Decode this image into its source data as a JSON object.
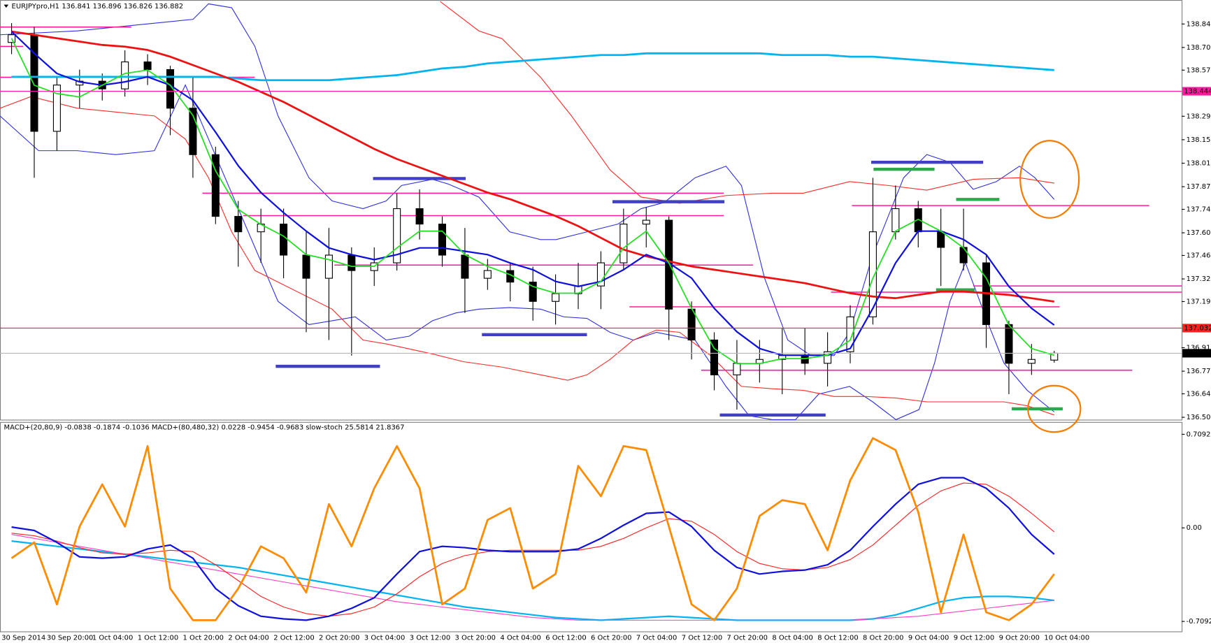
{
  "chart_data": [
    {
      "type": "candlestick",
      "title": "EURJPYpro,H1",
      "subtitle": "136.841 136.896 136.826 136.882",
      "categories": [
        "30 Sep 2014",
        null,
        "30 Sep 20:00",
        null,
        "1 Oct 04:00",
        null,
        "1 Oct 12:00",
        null,
        "1 Oct 20:00",
        null,
        "2 Oct 04:00",
        null,
        "2 Oct 12:00",
        null,
        "2 Oct 20:00",
        null,
        "3 Oct 04:00",
        null,
        "3 Oct 12:00",
        null,
        "3 Oct 20:00",
        null,
        "4 Oct 04:00",
        null,
        "6 Oct 12:00",
        null,
        "6 Oct 20:00",
        null,
        "7 Oct 04:00",
        null,
        "7 Oct 12:00",
        null,
        "7 Oct 20:00",
        null,
        "8 Oct 04:00",
        null,
        "8 Oct 12:00",
        null,
        "8 Oct 20:00",
        null,
        "9 Oct 04:00",
        null,
        "9 Oct 12:00",
        null,
        "9 Oct 20:00",
        null,
        "10 Oct 04:00"
      ],
      "open": [
        138.735,
        138.781,
        138.205,
        138.481,
        138.504,
        138.458,
        138.619,
        138.573,
        138.343,
        138.066,
        137.698,
        137.606,
        137.652,
        137.467,
        137.329,
        137.467,
        137.375,
        137.421,
        137.744,
        137.652,
        137.467,
        137.329,
        137.375,
        137.306,
        137.191,
        137.237,
        137.283,
        137.421,
        137.652,
        137.675,
        137.145,
        136.961,
        136.753,
        136.822,
        136.845,
        136.868,
        136.822,
        136.891,
        137.099,
        137.606,
        137.744,
        137.606,
        137.513,
        137.421,
        137.053,
        136.822,
        136.841
      ],
      "high": [
        138.85,
        138.827,
        138.527,
        138.573,
        138.55,
        138.688,
        138.665,
        138.596,
        138.527,
        138.113,
        137.79,
        137.744,
        137.744,
        137.606,
        137.629,
        137.513,
        137.513,
        137.836,
        137.859,
        137.698,
        137.629,
        137.444,
        137.421,
        137.398,
        137.352,
        137.421,
        137.49,
        137.744,
        137.753,
        137.698,
        137.191,
        137.007,
        136.961,
        136.961,
        137.03,
        137.03,
        137.007,
        137.168,
        137.928,
        137.882,
        137.79,
        137.744,
        137.744,
        137.467,
        137.076,
        136.937,
        136.896
      ],
      "low": [
        138.665,
        137.928,
        138.09,
        138.343,
        138.389,
        138.412,
        138.481,
        138.182,
        137.928,
        137.652,
        137.398,
        137.421,
        137.329,
        137.007,
        136.961,
        136.868,
        137.283,
        137.375,
        137.56,
        137.398,
        137.122,
        137.26,
        137.191,
        137.076,
        137.053,
        137.145,
        137.145,
        137.375,
        137.513,
        136.961,
        136.845,
        136.661,
        136.546,
        136.707,
        136.638,
        136.753,
        136.684,
        136.822,
        137.053,
        137.56,
        137.513,
        137.283,
        137.375,
        136.914,
        136.638,
        136.753,
        136.826
      ],
      "close": [
        138.781,
        138.205,
        138.481,
        138.504,
        138.458,
        138.619,
        138.573,
        138.343,
        138.066,
        137.698,
        137.606,
        137.652,
        137.467,
        137.329,
        137.467,
        137.375,
        137.421,
        137.744,
        137.652,
        137.467,
        137.329,
        137.375,
        137.306,
        137.191,
        137.237,
        137.283,
        137.421,
        137.652,
        137.675,
        137.145,
        136.961,
        136.753,
        136.822,
        136.845,
        136.868,
        136.822,
        136.891,
        137.099,
        137.606,
        137.744,
        137.606,
        137.513,
        137.421,
        137.053,
        136.822,
        136.845,
        136.882
      ],
      "up_color": "#ffffff",
      "down_color": "#000000",
      "series": [
        {
          "color": "#00b4f0",
          "width": 2.5,
          "values": [
            138.53,
            138.53,
            138.53,
            138.53,
            138.53,
            138.53,
            138.53,
            138.53,
            138.53,
            138.53,
            138.52,
            138.51,
            138.51,
            138.51,
            138.51,
            138.52,
            138.53,
            138.54,
            138.56,
            138.58,
            138.59,
            138.61,
            138.62,
            138.63,
            138.64,
            138.65,
            138.66,
            138.66,
            138.67,
            138.67,
            138.67,
            138.67,
            138.67,
            138.67,
            138.66,
            138.66,
            138.66,
            138.65,
            138.65,
            138.64,
            138.63,
            138.62,
            138.61,
            138.6,
            138.59,
            138.58,
            138.57
          ]
        },
        {
          "color": "#ee1111",
          "width": 2.5,
          "values": [
            138.8,
            138.78,
            138.76,
            138.74,
            138.72,
            138.71,
            138.69,
            138.65,
            138.6,
            138.55,
            138.5,
            138.44,
            138.38,
            138.31,
            138.24,
            138.17,
            138.1,
            138.04,
            137.99,
            137.94,
            137.89,
            137.84,
            137.8,
            137.75,
            137.7,
            137.64,
            137.57,
            137.5,
            137.46,
            137.43,
            137.4,
            137.38,
            137.36,
            137.34,
            137.32,
            137.3,
            137.27,
            137.24,
            137.22,
            137.21,
            137.23,
            137.25,
            137.25,
            137.24,
            137.23,
            137.21,
            137.19
          ]
        },
        {
          "color": "#1010dd",
          "width": 2,
          "values": [
            138.8,
            138.67,
            138.55,
            138.5,
            138.48,
            138.5,
            138.53,
            138.48,
            138.39,
            138.2,
            138.0,
            137.84,
            137.72,
            137.61,
            137.51,
            137.47,
            137.44,
            137.47,
            137.51,
            137.51,
            137.49,
            137.47,
            137.42,
            137.38,
            137.31,
            137.28,
            137.31,
            137.38,
            137.47,
            137.42,
            137.33,
            137.15,
            137.01,
            136.91,
            136.87,
            136.87,
            136.87,
            136.91,
            137.15,
            137.42,
            137.61,
            137.61,
            137.56,
            137.47,
            137.28,
            137.15,
            137.05
          ]
        },
        {
          "color": "#22e022",
          "width": 1.6,
          "values": [
            138.76,
            138.48,
            138.43,
            138.41,
            138.48,
            138.55,
            138.57,
            138.48,
            138.3,
            137.97,
            137.74,
            137.65,
            137.58,
            137.47,
            137.44,
            137.4,
            137.4,
            137.51,
            137.61,
            137.61,
            137.47,
            137.4,
            137.35,
            137.28,
            137.24,
            137.24,
            137.31,
            137.51,
            137.61,
            137.42,
            137.15,
            136.91,
            136.82,
            136.82,
            136.85,
            136.85,
            136.87,
            136.96,
            137.33,
            137.61,
            137.68,
            137.61,
            137.51,
            137.33,
            137.05,
            136.91,
            136.87
          ]
        }
      ],
      "markers": [
        {
          "value": 138.444,
          "color": "#ff1aa0",
          "line_color": "#ff1aa0"
        },
        {
          "value": 137.032,
          "color": "#ff2020",
          "line_color": "#ff2020"
        },
        {
          "value": 136.882,
          "color": "#000000",
          "line_color": "#b8b8b8"
        }
      ],
      "ylim": [
        136.486,
        138.988
      ],
      "yticks": [
        138.845,
        138.705,
        {
          "value": 138.57,
          "label": "138.570"
        },
        138.295,
        138.155,
        138.015,
        137.875,
        {
          "value": 137.74,
          "label": "137.740"
        },
        {
          "value": 137.6,
          "label": "137.600"
        },
        137.465,
        137.325,
        {
          "value": 137.19,
          "label": "137.190"
        },
        136.915,
        136.775,
        {
          "value": 136.64,
          "label": "136.640"
        },
        {
          "value": 136.5,
          "label": "136.500"
        }
      ]
    },
    {
      "type": "line",
      "title": "MACD+(20,80,9) -0.0838 -0.1874 -0.1036  MACD+(80,480,32) 0.0228 -0.9454 -0.9683  slow-stoch 25.5814 21.8367",
      "series": [
        {
          "color": "#00b4f0",
          "width": 2,
          "values": [
            -0.1,
            -0.12,
            -0.14,
            -0.16,
            -0.18,
            -0.2,
            -0.22,
            -0.24,
            -0.26,
            -0.28,
            -0.3,
            -0.33,
            -0.36,
            -0.39,
            -0.42,
            -0.45,
            -0.48,
            -0.51,
            -0.54,
            -0.57,
            -0.6,
            -0.62,
            -0.64,
            -0.66,
            -0.68,
            -0.69,
            -0.7,
            -0.69,
            -0.68,
            -0.67,
            -0.68,
            -0.69,
            -0.7,
            -0.7,
            -0.7,
            -0.7,
            -0.7,
            -0.7,
            -0.69,
            -0.66,
            -0.61,
            -0.56,
            -0.53,
            -0.52,
            -0.52,
            -0.53,
            -0.55
          ]
        },
        {
          "color": "#ff3ec8",
          "width": 1,
          "values": [
            -0.05,
            -0.08,
            -0.11,
            -0.14,
            -0.17,
            -0.2,
            -0.23,
            -0.26,
            -0.29,
            -0.32,
            -0.35,
            -0.38,
            -0.41,
            -0.44,
            -0.47,
            -0.5,
            -0.53,
            -0.56,
            -0.58,
            -0.6,
            -0.62,
            -0.64,
            -0.66,
            -0.68,
            -0.69,
            -0.7,
            -0.7,
            -0.7,
            -0.7,
            -0.7,
            -0.7,
            -0.7,
            -0.7,
            -0.7,
            -0.7,
            -0.7,
            -0.7,
            -0.7,
            -0.69,
            -0.68,
            -0.67,
            -0.65,
            -0.63,
            -0.61,
            -0.59,
            -0.57,
            -0.55
          ]
        },
        {
          "color": "#ff2020",
          "width": 1,
          "values": [
            -0.04,
            -0.06,
            -0.1,
            -0.15,
            -0.19,
            -0.2,
            -0.19,
            -0.17,
            -0.18,
            -0.28,
            -0.4,
            -0.52,
            -0.6,
            -0.65,
            -0.67,
            -0.65,
            -0.6,
            -0.5,
            -0.37,
            -0.27,
            -0.21,
            -0.18,
            -0.17,
            -0.17,
            -0.17,
            -0.17,
            -0.14,
            -0.08,
            0.0,
            0.07,
            0.05,
            -0.05,
            -0.18,
            -0.27,
            -0.31,
            -0.32,
            -0.3,
            -0.24,
            -0.13,
            0.02,
            0.17,
            0.28,
            0.34,
            0.33,
            0.24,
            0.11,
            -0.03
          ]
        },
        {
          "color": "#1010dd",
          "width": 2,
          "values": [
            0.006,
            -0.02,
            -0.11,
            -0.22,
            -0.23,
            -0.22,
            -0.16,
            -0.13,
            -0.23,
            -0.46,
            -0.59,
            -0.67,
            -0.69,
            -0.7,
            -0.67,
            -0.61,
            -0.53,
            -0.35,
            -0.18,
            -0.14,
            -0.15,
            -0.17,
            -0.18,
            -0.18,
            -0.18,
            -0.16,
            -0.08,
            0.02,
            0.11,
            0.12,
            0.01,
            -0.17,
            -0.3,
            -0.35,
            -0.33,
            -0.32,
            -0.28,
            -0.17,
            0.01,
            0.18,
            0.33,
            0.38,
            0.38,
            0.3,
            0.15,
            -0.05,
            -0.2
          ]
        },
        {
          "color": "#ff8c00",
          "width": 2.5,
          "values": [
            -0.23,
            -0.11,
            -0.58,
            0.01,
            0.33,
            0.01,
            0.62,
            -0.46,
            -0.7,
            -0.7,
            -0.46,
            -0.14,
            -0.23,
            -0.49,
            0.18,
            -0.14,
            0.3,
            0.62,
            0.3,
            -0.58,
            -0.46,
            0.06,
            0.15,
            -0.46,
            -0.35,
            0.47,
            0.24,
            0.62,
            0.59,
            0.01,
            -0.58,
            -0.7,
            -0.46,
            0.09,
            0.21,
            0.18,
            -0.17,
            0.36,
            0.68,
            0.59,
            0.12,
            -0.64,
            -0.05,
            -0.64,
            -0.7,
            -0.58,
            -0.35
          ]
        }
      ],
      "ylim": [
        -0.785,
        0.791
      ],
      "yticks": [
        0.7092,
        {
          "value": 0,
          "label": "0.00"
        },
        -0.7092
      ]
    }
  ]
}
